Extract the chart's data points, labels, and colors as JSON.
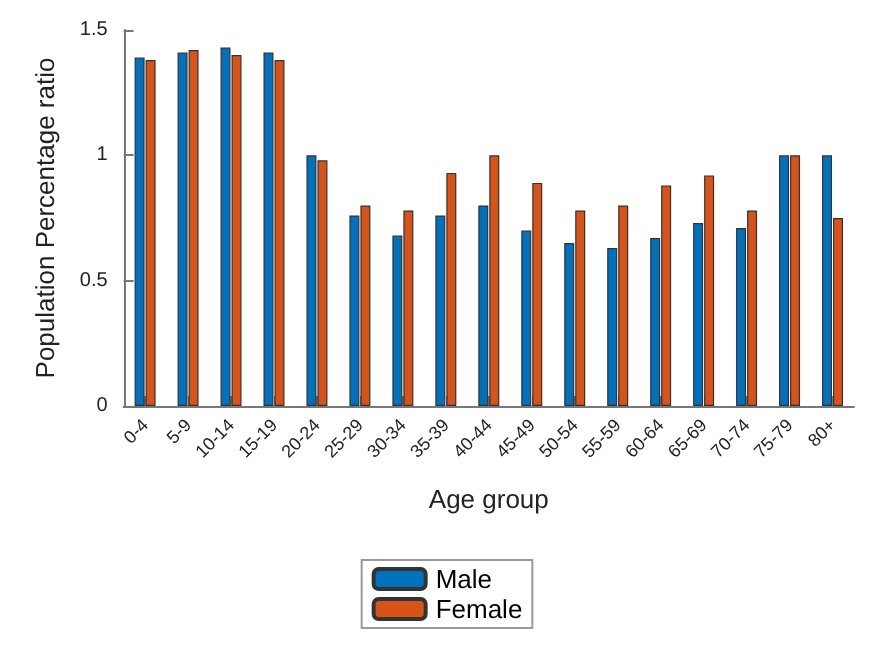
{
  "chart_data": {
    "type": "bar",
    "xlabel": "Age group",
    "ylabel": "Population Percentage ratio",
    "categories": [
      "0-4",
      "5-9",
      "10-14",
      "15-19",
      "20-24",
      "25-29",
      "30-34",
      "35-39",
      "40-44",
      "45-49",
      "50-54",
      "55-59",
      "60-64",
      "65-69",
      "70-74",
      "75-79",
      "80+"
    ],
    "series": [
      {
        "name": "Male",
        "color": "#0072bd",
        "values": [
          1.39,
          1.41,
          1.43,
          1.41,
          1.0,
          0.76,
          0.68,
          0.76,
          0.8,
          0.7,
          0.65,
          0.63,
          0.67,
          0.73,
          0.71,
          1.0,
          1.0
        ]
      },
      {
        "name": "Female",
        "color": "#d95319",
        "values": [
          1.38,
          1.42,
          1.4,
          1.38,
          0.98,
          0.8,
          0.78,
          0.93,
          1.0,
          0.89,
          0.78,
          0.8,
          0.88,
          0.92,
          0.78,
          1.0,
          0.75
        ]
      }
    ],
    "ylim": [
      0,
      1.5
    ],
    "yticks": [
      0,
      0.5,
      1,
      1.5
    ],
    "grid": false,
    "legend": "bottom"
  }
}
